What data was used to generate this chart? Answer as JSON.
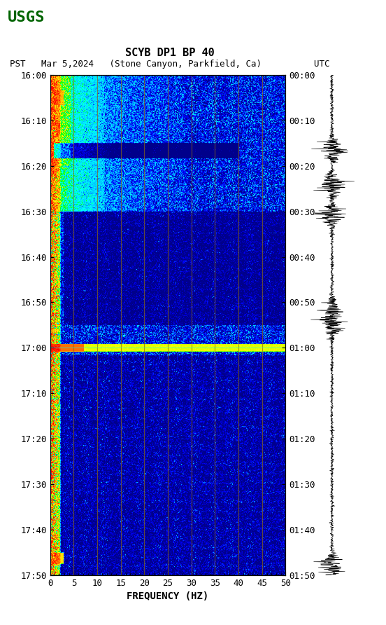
{
  "title_line1": "SCYB DP1 BP 40",
  "title_line2": "PST   Mar 5,2024   (Stone Canyon, Parkfield, Ca)          UTC",
  "xlabel": "FREQUENCY (HZ)",
  "freq_min": 0,
  "freq_max": 50,
  "freq_ticks": [
    0,
    5,
    10,
    15,
    20,
    25,
    30,
    35,
    40,
    45,
    50
  ],
  "time_start_pst": "16:00",
  "time_end_pst": "17:50",
  "time_start_utc": "00:00",
  "time_end_utc": "01:50",
  "pst_ticks": [
    "16:00",
    "16:10",
    "16:20",
    "16:30",
    "16:40",
    "16:50",
    "17:00",
    "17:10",
    "17:20",
    "17:30",
    "17:40",
    "17:50"
  ],
  "utc_ticks": [
    "00:00",
    "00:10",
    "00:20",
    "00:30",
    "00:40",
    "00:50",
    "01:00",
    "01:10",
    "01:20",
    "01:30",
    "01:40",
    "01:50"
  ],
  "bg_color": "#ffffff",
  "spectrogram_bg": "#00008B",
  "vertical_lines_color": "#8B6914",
  "vertical_lines_freq": [
    5,
    10,
    15,
    20,
    25,
    30,
    35,
    40,
    45
  ],
  "fig_width": 5.52,
  "fig_height": 8.92,
  "dpi": 100
}
